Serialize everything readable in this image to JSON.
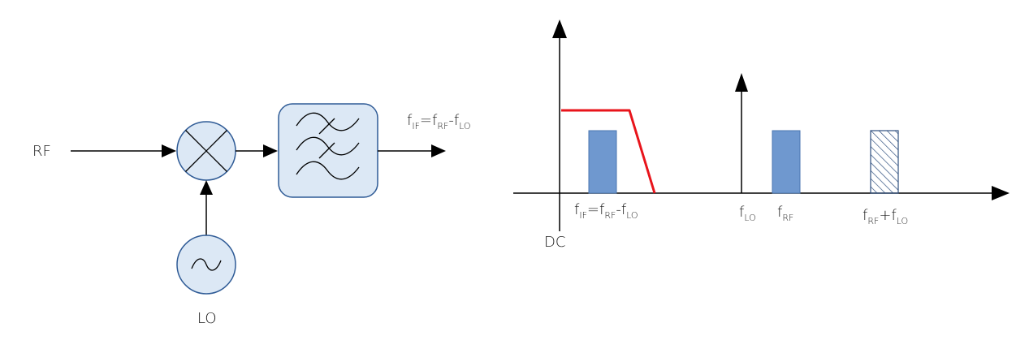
{
  "block_diagram": {
    "rf_label": "RF",
    "lo_label": "LO",
    "output_label": {
      "f": "f",
      "if": "IF",
      "eq": "=",
      "rf": "RF",
      "minus": "-",
      "lo": "LO"
    }
  },
  "spectrum": {
    "dc_label": "DC",
    "if_label": {
      "f": "f",
      "if": "IF",
      "eq": "=",
      "rf": "RF",
      "minus": "-",
      "lo": "LO"
    },
    "lo_label": {
      "f": "f",
      "sub": "LO"
    },
    "rf_label": {
      "f": "f",
      "sub": "RF"
    },
    "sum_label": {
      "f": "f",
      "rf": "RF",
      "plus": "+",
      "lo": "LO"
    }
  },
  "colors": {
    "bar_fill": "#6f98cf",
    "bar_stroke": "#4a76b0",
    "filter_response": "#e8141b",
    "block_fill": "#dce8f5",
    "block_stroke": "#2f5b96",
    "line": "#000000"
  }
}
